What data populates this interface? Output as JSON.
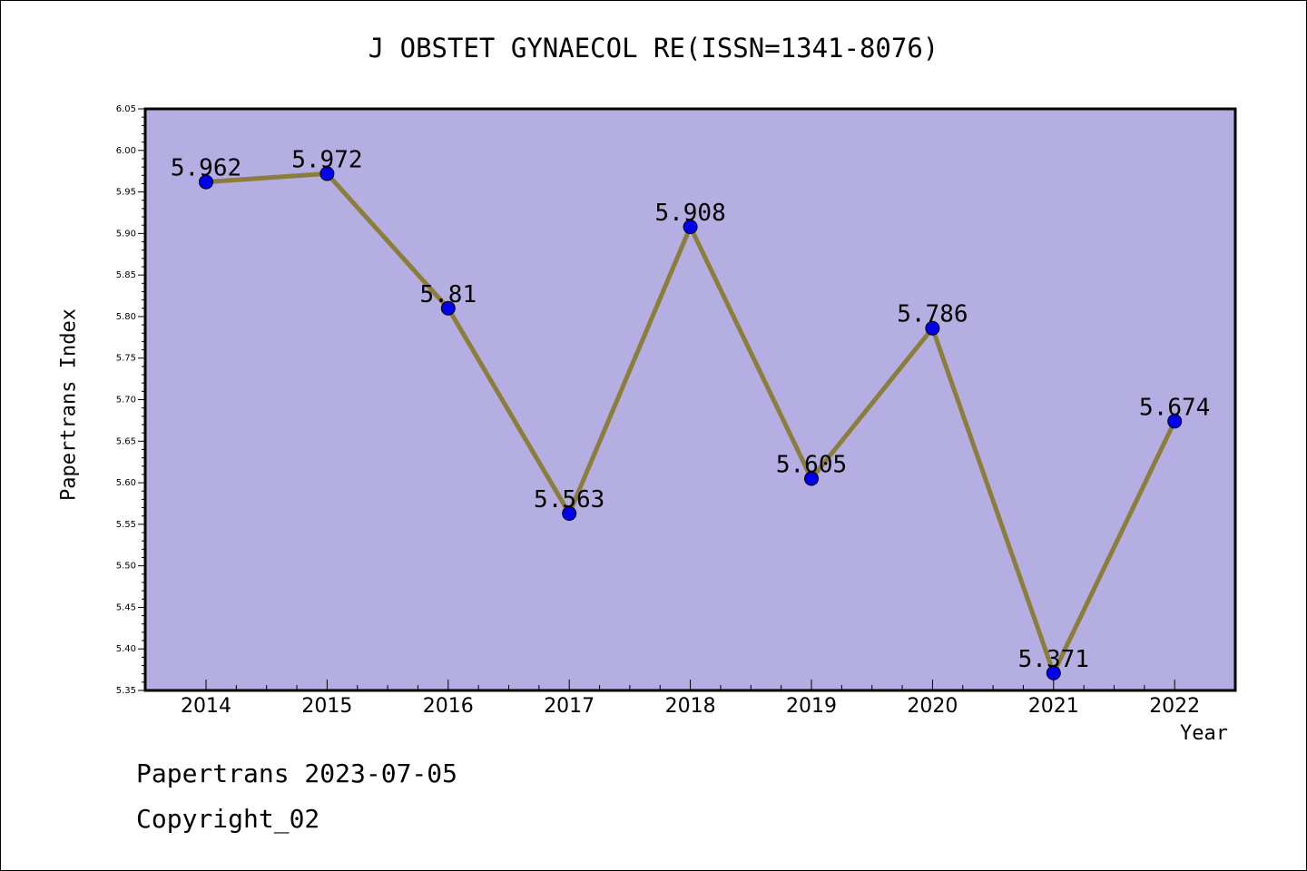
{
  "header": {
    "title": "J OBSTET GYNAECOL RE(ISSN=1341-8076)"
  },
  "footer": {
    "date_text": "Papertrans 2023-07-05",
    "copyright_text": "Copyright_02"
  },
  "chart_data": {
    "type": "line",
    "title": "J OBSTET GYNAECOL RE(ISSN=1341-8076)",
    "xlabel": "Year",
    "ylabel": "Papertrans Index",
    "categories": [
      "2014",
      "2015",
      "2016",
      "2017",
      "2018",
      "2019",
      "2020",
      "2021",
      "2022"
    ],
    "series": [
      {
        "values": [
          5.962,
          5.972,
          5.81,
          5.563,
          5.908,
          5.605,
          5.786,
          5.371,
          5.674
        ]
      }
    ],
    "data_labels": [
      "5.962",
      "5.972",
      "5.81",
      "5.563",
      "5.908",
      "5.605",
      "5.786",
      "5.371",
      "5.674"
    ],
    "ylim": [
      5.35,
      6.05
    ],
    "yticks": [
      "5.35",
      "5.40",
      "5.45",
      "5.50",
      "5.55",
      "5.60",
      "5.65",
      "5.70",
      "5.75",
      "5.80",
      "5.85",
      "5.90",
      "5.95",
      "6.00",
      "6.05"
    ],
    "grid": false,
    "legend": "none",
    "colors": {
      "plot_background": "#b4aee2",
      "line": "#8b7d3a",
      "marker": "#0000ee"
    }
  }
}
